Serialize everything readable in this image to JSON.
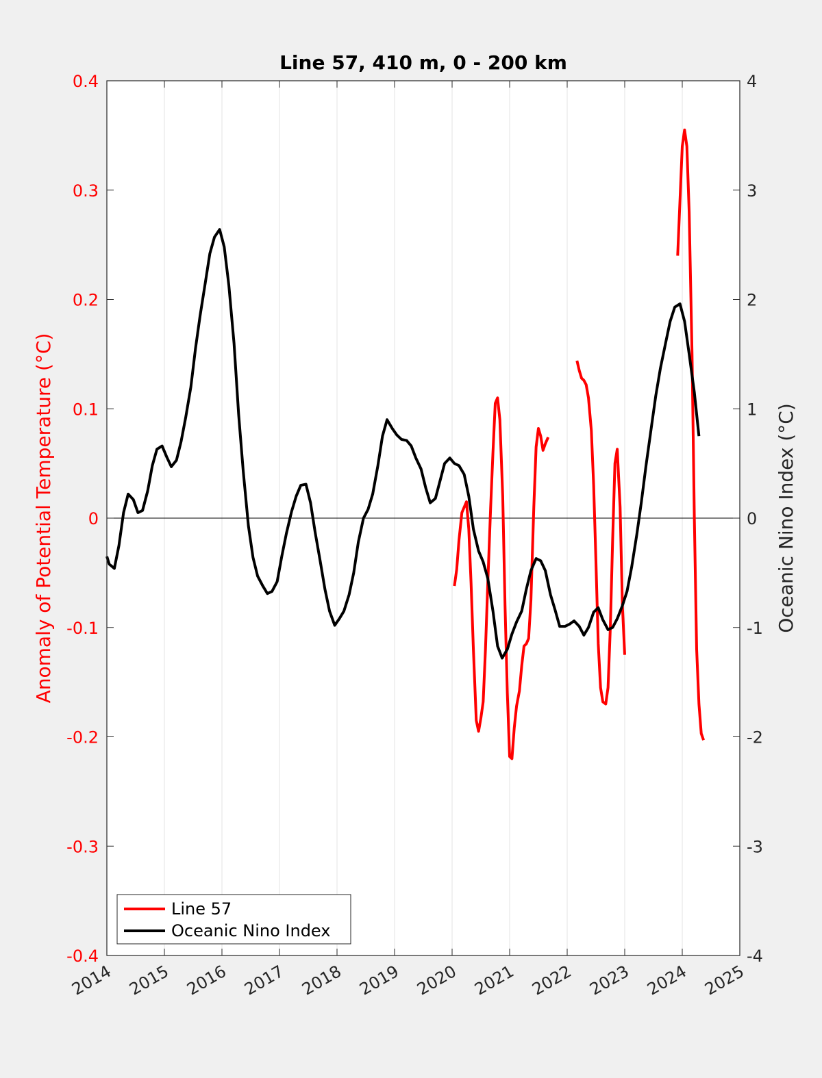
{
  "chart_data": {
    "type": "line",
    "title": "Line 57, 410 m, 0 - 200 km",
    "ylabel_left": "Anomaly of Potential Temperature (°C)",
    "ylabel_right": "Oceanic Nino Index (°C)",
    "xlim": [
      2014,
      2025
    ],
    "ylim_left": [
      -0.4,
      0.4
    ],
    "ylim_right": [
      -4,
      4
    ],
    "x_ticks": [
      "2014",
      "2015",
      "2016",
      "2017",
      "2018",
      "2019",
      "2020",
      "2021",
      "2022",
      "2023",
      "2024",
      "2025"
    ],
    "y_ticks_left": [
      "0.4",
      "0.3",
      "0.2",
      "0.1",
      "0",
      "-0.1",
      "-0.2",
      "-0.3",
      "-0.4"
    ],
    "y_ticks_right": [
      "4",
      "3",
      "2",
      "1",
      "0",
      "-1",
      "-2",
      "-3",
      "-4"
    ],
    "grid": "vertical",
    "legend_position": "bottom-left",
    "colors": {
      "line57": "#ff0000",
      "oni": "#000000",
      "left_axis": "#ff0000"
    },
    "series": [
      {
        "name": "Line 57",
        "axis": "left",
        "segments": [
          [
            [
              2020.04,
              -0.062
            ],
            [
              2020.08,
              -0.047
            ],
            [
              2020.12,
              -0.02
            ],
            [
              2020.17,
              0.005
            ],
            [
              2020.21,
              0.01
            ],
            [
              2020.25,
              0.015
            ],
            [
              2020.29,
              -0.01
            ],
            [
              2020.33,
              -0.06
            ],
            [
              2020.37,
              -0.12
            ],
            [
              2020.42,
              -0.185
            ],
            [
              2020.46,
              -0.195
            ],
            [
              2020.5,
              -0.183
            ],
            [
              2020.54,
              -0.168
            ],
            [
              2020.58,
              -0.12
            ],
            [
              2020.62,
              -0.06
            ],
            [
              2020.67,
              0.01
            ],
            [
              2020.71,
              0.06
            ],
            [
              2020.75,
              0.105
            ],
            [
              2020.79,
              0.11
            ],
            [
              2020.83,
              0.09
            ],
            [
              2020.88,
              0.02
            ],
            [
              2020.92,
              -0.08
            ],
            [
              2020.96,
              -0.16
            ],
            [
              2021.0,
              -0.218
            ],
            [
              2021.04,
              -0.22
            ],
            [
              2021.08,
              -0.192
            ],
            [
              2021.12,
              -0.172
            ],
            [
              2021.17,
              -0.158
            ],
            [
              2021.21,
              -0.135
            ],
            [
              2021.25,
              -0.117
            ],
            [
              2021.29,
              -0.115
            ],
            [
              2021.33,
              -0.11
            ],
            [
              2021.37,
              -0.075
            ],
            [
              2021.42,
              0.01
            ],
            [
              2021.46,
              0.065
            ],
            [
              2021.5,
              0.082
            ],
            [
              2021.54,
              0.075
            ],
            [
              2021.58,
              0.062
            ],
            [
              2021.62,
              0.068
            ],
            [
              2021.67,
              0.074
            ]
          ],
          [
            [
              2022.17,
              0.144
            ],
            [
              2022.21,
              0.135
            ],
            [
              2022.25,
              0.128
            ],
            [
              2022.29,
              0.126
            ],
            [
              2022.33,
              0.122
            ],
            [
              2022.37,
              0.11
            ],
            [
              2022.42,
              0.08
            ],
            [
              2022.46,
              0.03
            ],
            [
              2022.5,
              -0.04
            ],
            [
              2022.54,
              -0.115
            ],
            [
              2022.58,
              -0.155
            ],
            [
              2022.62,
              -0.168
            ],
            [
              2022.67,
              -0.17
            ],
            [
              2022.71,
              -0.155
            ],
            [
              2022.75,
              -0.1
            ],
            [
              2022.79,
              -0.02
            ],
            [
              2022.83,
              0.05
            ],
            [
              2022.87,
              0.063
            ],
            [
              2022.92,
              0.01
            ],
            [
              2022.96,
              -0.08
            ],
            [
              2023.0,
              -0.125
            ]
          ],
          [
            [
              2023.92,
              0.24
            ],
            [
              2023.96,
              0.29
            ],
            [
              2024.0,
              0.34
            ],
            [
              2024.04,
              0.355
            ],
            [
              2024.08,
              0.34
            ],
            [
              2024.12,
              0.28
            ],
            [
              2024.17,
              0.15
            ],
            [
              2024.21,
              0.0
            ],
            [
              2024.25,
              -0.12
            ],
            [
              2024.29,
              -0.17
            ],
            [
              2024.33,
              -0.197
            ],
            [
              2024.37,
              -0.203
            ]
          ]
        ]
      },
      {
        "name": "Oceanic Nino Index",
        "axis": "right",
        "points": [
          [
            2014.0,
            -0.35
          ],
          [
            2014.04,
            -0.42
          ],
          [
            2014.13,
            -0.46
          ],
          [
            2014.21,
            -0.25
          ],
          [
            2014.29,
            0.05
          ],
          [
            2014.37,
            0.22
          ],
          [
            2014.46,
            0.17
          ],
          [
            2014.54,
            0.05
          ],
          [
            2014.62,
            0.07
          ],
          [
            2014.71,
            0.25
          ],
          [
            2014.79,
            0.48
          ],
          [
            2014.87,
            0.63
          ],
          [
            2014.96,
            0.66
          ],
          [
            2015.04,
            0.56
          ],
          [
            2015.12,
            0.47
          ],
          [
            2015.21,
            0.53
          ],
          [
            2015.29,
            0.7
          ],
          [
            2015.37,
            0.92
          ],
          [
            2015.46,
            1.2
          ],
          [
            2015.54,
            1.55
          ],
          [
            2015.62,
            1.85
          ],
          [
            2015.71,
            2.15
          ],
          [
            2015.79,
            2.42
          ],
          [
            2015.87,
            2.57
          ],
          [
            2015.96,
            2.64
          ],
          [
            2016.04,
            2.48
          ],
          [
            2016.12,
            2.13
          ],
          [
            2016.21,
            1.6
          ],
          [
            2016.29,
            0.95
          ],
          [
            2016.37,
            0.43
          ],
          [
            2016.46,
            -0.07
          ],
          [
            2016.54,
            -0.36
          ],
          [
            2016.62,
            -0.53
          ],
          [
            2016.71,
            -0.62
          ],
          [
            2016.79,
            -0.69
          ],
          [
            2016.87,
            -0.67
          ],
          [
            2016.96,
            -0.58
          ],
          [
            2017.04,
            -0.35
          ],
          [
            2017.12,
            -0.14
          ],
          [
            2017.21,
            0.06
          ],
          [
            2017.29,
            0.2
          ],
          [
            2017.37,
            0.3
          ],
          [
            2017.46,
            0.31
          ],
          [
            2017.54,
            0.14
          ],
          [
            2017.62,
            -0.13
          ],
          [
            2017.71,
            -0.4
          ],
          [
            2017.79,
            -0.65
          ],
          [
            2017.87,
            -0.85
          ],
          [
            2017.96,
            -0.98
          ],
          [
            2018.04,
            -0.92
          ],
          [
            2018.12,
            -0.85
          ],
          [
            2018.21,
            -0.7
          ],
          [
            2018.29,
            -0.5
          ],
          [
            2018.37,
            -0.22
          ],
          [
            2018.46,
            0.0
          ],
          [
            2018.54,
            0.08
          ],
          [
            2018.62,
            0.22
          ],
          [
            2018.71,
            0.48
          ],
          [
            2018.79,
            0.75
          ],
          [
            2018.87,
            0.9
          ],
          [
            2018.96,
            0.82
          ],
          [
            2019.04,
            0.76
          ],
          [
            2019.12,
            0.72
          ],
          [
            2019.21,
            0.71
          ],
          [
            2019.29,
            0.66
          ],
          [
            2019.37,
            0.55
          ],
          [
            2019.46,
            0.45
          ],
          [
            2019.54,
            0.28
          ],
          [
            2019.62,
            0.14
          ],
          [
            2019.71,
            0.18
          ],
          [
            2019.79,
            0.34
          ],
          [
            2019.87,
            0.5
          ],
          [
            2019.96,
            0.55
          ],
          [
            2020.04,
            0.5
          ],
          [
            2020.12,
            0.48
          ],
          [
            2020.21,
            0.4
          ],
          [
            2020.29,
            0.2
          ],
          [
            2020.37,
            -0.1
          ],
          [
            2020.46,
            -0.3
          ],
          [
            2020.54,
            -0.4
          ],
          [
            2020.62,
            -0.55
          ],
          [
            2020.71,
            -0.85
          ],
          [
            2020.79,
            -1.17
          ],
          [
            2020.87,
            -1.28
          ],
          [
            2020.96,
            -1.2
          ],
          [
            2021.04,
            -1.06
          ],
          [
            2021.12,
            -0.95
          ],
          [
            2021.21,
            -0.85
          ],
          [
            2021.29,
            -0.65
          ],
          [
            2021.37,
            -0.48
          ],
          [
            2021.46,
            -0.37
          ],
          [
            2021.54,
            -0.39
          ],
          [
            2021.62,
            -0.48
          ],
          [
            2021.71,
            -0.7
          ],
          [
            2021.79,
            -0.84
          ],
          [
            2021.87,
            -0.99
          ],
          [
            2021.96,
            -0.99
          ],
          [
            2022.04,
            -0.97
          ],
          [
            2022.12,
            -0.94
          ],
          [
            2022.21,
            -0.99
          ],
          [
            2022.29,
            -1.07
          ],
          [
            2022.37,
            -1.0
          ],
          [
            2022.46,
            -0.86
          ],
          [
            2022.54,
            -0.82
          ],
          [
            2022.62,
            -0.93
          ],
          [
            2022.71,
            -1.02
          ],
          [
            2022.79,
            -1.0
          ],
          [
            2022.87,
            -0.92
          ],
          [
            2022.96,
            -0.8
          ],
          [
            2023.04,
            -0.67
          ],
          [
            2023.12,
            -0.45
          ],
          [
            2023.21,
            -0.15
          ],
          [
            2023.29,
            0.15
          ],
          [
            2023.37,
            0.48
          ],
          [
            2023.46,
            0.82
          ],
          [
            2023.54,
            1.12
          ],
          [
            2023.62,
            1.37
          ],
          [
            2023.71,
            1.6
          ],
          [
            2023.79,
            1.8
          ],
          [
            2023.87,
            1.93
          ],
          [
            2023.96,
            1.96
          ],
          [
            2024.04,
            1.8
          ],
          [
            2024.12,
            1.5
          ],
          [
            2024.21,
            1.15
          ],
          [
            2024.29,
            0.75
          ]
        ]
      }
    ]
  }
}
